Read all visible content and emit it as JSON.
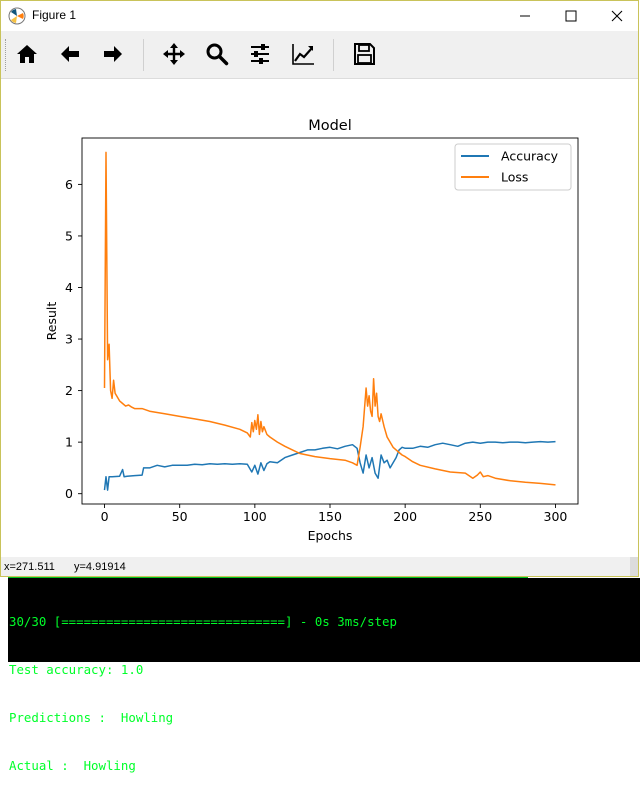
{
  "window": {
    "title": "Figure 1"
  },
  "toolbar": {
    "buttons": [
      {
        "name": "home-icon"
      },
      {
        "name": "back-arrow-icon"
      },
      {
        "name": "forward-arrow-icon"
      },
      {
        "name": "pan-move-icon"
      },
      {
        "name": "zoom-magnifier-icon"
      },
      {
        "name": "configure-subplots-icon"
      },
      {
        "name": "edit-axis-curve-icon"
      },
      {
        "name": "save-floppy-icon"
      }
    ]
  },
  "status": {
    "x": "x=271.511",
    "y": "y=4.91914"
  },
  "console": {
    "lines": [
      "30/30 [==============================] - 0s 3ms/step",
      "Test accuracy: 1.0",
      "Predictions :  Howling",
      "Actual :  Howling"
    ]
  },
  "colors": {
    "accuracy": "#1f77b4",
    "loss": "#ff7f0e",
    "console_text": "#00ff2a"
  },
  "chart_data": {
    "type": "line",
    "title": "Model",
    "xlabel": "Epochs",
    "ylabel": "Result",
    "xlim": [
      -15,
      315
    ],
    "ylim": [
      -0.2,
      6.9
    ],
    "xticks": [
      0,
      50,
      100,
      150,
      200,
      250,
      300
    ],
    "yticks": [
      0,
      1,
      2,
      3,
      4,
      5,
      6
    ],
    "grid": false,
    "legend": "top-right",
    "series": [
      {
        "name": "Accuracy",
        "x": [
          0,
          1,
          2,
          3,
          5,
          10,
          12,
          13,
          15,
          20,
          25,
          26,
          30,
          35,
          40,
          45,
          50,
          55,
          60,
          65,
          70,
          75,
          80,
          85,
          90,
          95,
          98,
          100,
          102,
          104,
          106,
          108,
          110,
          115,
          120,
          125,
          130,
          135,
          140,
          145,
          150,
          155,
          160,
          165,
          168,
          170,
          172,
          174,
          176,
          178,
          180,
          182,
          184,
          186,
          188,
          190,
          192,
          194,
          196,
          198,
          200,
          205,
          210,
          215,
          220,
          225,
          230,
          235,
          240,
          245,
          250,
          255,
          260,
          265,
          270,
          275,
          280,
          285,
          290,
          295,
          300
        ],
        "y": [
          0.07,
          0.33,
          0.07,
          0.33,
          0.33,
          0.34,
          0.47,
          0.33,
          0.34,
          0.35,
          0.36,
          0.5,
          0.5,
          0.55,
          0.52,
          0.55,
          0.55,
          0.55,
          0.57,
          0.56,
          0.58,
          0.57,
          0.58,
          0.57,
          0.58,
          0.57,
          0.42,
          0.55,
          0.38,
          0.6,
          0.45,
          0.58,
          0.62,
          0.6,
          0.7,
          0.75,
          0.8,
          0.85,
          0.85,
          0.88,
          0.9,
          0.87,
          0.92,
          0.95,
          0.88,
          0.6,
          0.4,
          0.75,
          0.5,
          0.7,
          0.4,
          0.3,
          0.75,
          0.6,
          0.65,
          0.5,
          0.6,
          0.7,
          0.85,
          0.9,
          0.88,
          0.88,
          0.92,
          0.9,
          0.95,
          0.98,
          0.95,
          0.92,
          0.98,
          1.0,
          0.98,
          1.0,
          1.0,
          0.99,
          1.0,
          1.0,
          0.99,
          1.0,
          1.01,
          1.0,
          1.01
        ]
      },
      {
        "name": "Loss",
        "x": [
          0,
          1,
          2,
          3,
          4,
          5,
          6,
          7,
          8,
          10,
          12,
          14,
          16,
          18,
          20,
          25,
          30,
          40,
          50,
          60,
          70,
          80,
          90,
          95,
          97,
          98,
          99,
          100,
          101,
          102,
          103,
          104,
          105,
          106,
          108,
          110,
          115,
          120,
          125,
          130,
          140,
          150,
          160,
          165,
          168,
          170,
          172,
          174,
          175,
          176,
          177,
          178,
          179,
          180,
          181,
          182,
          183,
          184,
          186,
          188,
          190,
          192,
          194,
          196,
          198,
          200,
          205,
          210,
          220,
          230,
          240,
          245,
          248,
          250,
          252,
          255,
          260,
          270,
          280,
          290,
          300
        ],
        "y": [
          2.05,
          6.62,
          2.6,
          2.9,
          2.0,
          1.85,
          2.2,
          1.95,
          1.9,
          1.8,
          1.75,
          1.7,
          1.72,
          1.68,
          1.65,
          1.65,
          1.6,
          1.55,
          1.5,
          1.45,
          1.4,
          1.33,
          1.25,
          1.18,
          1.1,
          1.38,
          1.2,
          1.42,
          1.25,
          1.53,
          1.15,
          1.4,
          1.2,
          1.3,
          1.15,
          1.1,
          1.0,
          0.92,
          0.85,
          0.78,
          0.72,
          0.68,
          0.65,
          0.6,
          0.55,
          0.9,
          1.3,
          2.05,
          1.7,
          1.9,
          1.6,
          1.5,
          2.23,
          1.7,
          1.95,
          1.5,
          1.4,
          1.55,
          1.3,
          1.1,
          1.0,
          0.9,
          0.85,
          0.8,
          0.75,
          0.72,
          0.62,
          0.55,
          0.48,
          0.42,
          0.4,
          0.3,
          0.36,
          0.42,
          0.33,
          0.35,
          0.3,
          0.25,
          0.22,
          0.2,
          0.17
        ]
      }
    ]
  }
}
